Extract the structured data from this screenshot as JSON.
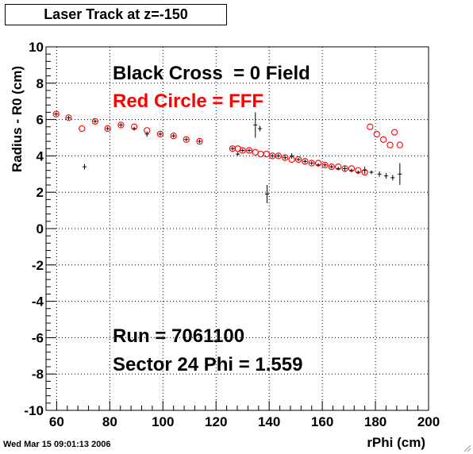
{
  "canvas": {
    "footer_timestamp": "Wed Mar 15 09:01:13 2006"
  },
  "chart_data": {
    "type": "scatter",
    "title": "Laser Track at z=-150",
    "xlabel": "rPhi (cm)",
    "ylabel": "Radius - R0 (cm)",
    "xlim": [
      56,
      200
    ],
    "ylim": [
      -10,
      10
    ],
    "x_ticks": [
      60,
      80,
      100,
      120,
      140,
      160,
      180,
      200
    ],
    "y_ticks": [
      -10,
      -8,
      -6,
      -4,
      -2,
      0,
      2,
      4,
      6,
      8,
      10
    ],
    "grid": true,
    "annotations": {
      "legend_black": "Black Cross  = 0 Field",
      "legend_red": "Red Circle = FFF",
      "run": "Run = 7061100",
      "sector": "Sector 24 Phi = 1.559"
    },
    "colors": {
      "black": "#000000",
      "red": "#ff0000"
    },
    "series": [
      {
        "marker": "cross",
        "color": "#000000",
        "points": [
          {
            "x": 59.8,
            "y": 6.3,
            "err": 0.1
          },
          {
            "x": 64.5,
            "y": 6.1,
            "err": 0.1
          },
          {
            "x": 70.5,
            "y": 3.4,
            "err": 0.15
          },
          {
            "x": 74.5,
            "y": 5.9,
            "err": 0.1
          },
          {
            "x": 79.2,
            "y": 5.5,
            "err": 0.1
          },
          {
            "x": 84.2,
            "y": 5.7,
            "err": 0.1
          },
          {
            "x": 89.2,
            "y": 5.5,
            "err": 0.1
          },
          {
            "x": 94.0,
            "y": 5.2,
            "err": 0.15
          },
          {
            "x": 99.0,
            "y": 5.2,
            "err": 0.1
          },
          {
            "x": 104.0,
            "y": 5.1,
            "err": 0.1
          },
          {
            "x": 108.8,
            "y": 4.9,
            "err": 0.1
          },
          {
            "x": 113.8,
            "y": 4.8,
            "err": 0.1
          },
          {
            "x": 126.2,
            "y": 4.4,
            "err": 0.1
          },
          {
            "x": 128.2,
            "y": 4.1,
            "err": 0.1
          },
          {
            "x": 130.0,
            "y": 4.3,
            "err": 0.1
          },
          {
            "x": 132.5,
            "y": 4.3,
            "err": 0.1
          },
          {
            "x": 134.8,
            "y": 5.7,
            "err": 0.7
          },
          {
            "x": 136.5,
            "y": 5.5,
            "err": 0.15
          },
          {
            "x": 139.2,
            "y": 1.9,
            "err": 0.5
          },
          {
            "x": 141.2,
            "y": 4.0,
            "err": 0.1
          },
          {
            "x": 143.5,
            "y": 4.0,
            "err": 0.1
          },
          {
            "x": 146.0,
            "y": 3.9,
            "err": 0.1
          },
          {
            "x": 148.5,
            "y": 4.0,
            "err": 0.15
          },
          {
            "x": 151.0,
            "y": 3.8,
            "err": 0.1
          },
          {
            "x": 153.5,
            "y": 3.7,
            "err": 0.1
          },
          {
            "x": 156.0,
            "y": 3.6,
            "err": 0.1
          },
          {
            "x": 158.5,
            "y": 3.5,
            "err": 0.1
          },
          {
            "x": 161.0,
            "y": 3.5,
            "err": 0.1
          },
          {
            "x": 163.5,
            "y": 3.4,
            "err": 0.1
          },
          {
            "x": 166.0,
            "y": 3.3,
            "err": 0.1
          },
          {
            "x": 168.5,
            "y": 3.3,
            "err": 0.15
          },
          {
            "x": 171.0,
            "y": 3.2,
            "err": 0.1
          },
          {
            "x": 173.5,
            "y": 3.1,
            "err": 0.1
          },
          {
            "x": 176.0,
            "y": 3.2,
            "err": 0.2
          },
          {
            "x": 178.5,
            "y": 3.1,
            "err": 0.1
          },
          {
            "x": 181.5,
            "y": 3.0,
            "err": 0.15
          },
          {
            "x": 184.0,
            "y": 2.9,
            "err": 0.15
          },
          {
            "x": 186.5,
            "y": 2.8,
            "err": 0.15
          },
          {
            "x": 189.2,
            "y": 3.0,
            "err": 0.6
          }
        ]
      },
      {
        "marker": "circle",
        "color": "#ff0000",
        "points": [
          {
            "x": 59.8,
            "y": 6.3
          },
          {
            "x": 64.5,
            "y": 6.1
          },
          {
            "x": 69.5,
            "y": 5.5
          },
          {
            "x": 74.5,
            "y": 5.9
          },
          {
            "x": 79.2,
            "y": 5.5
          },
          {
            "x": 84.2,
            "y": 5.7
          },
          {
            "x": 89.2,
            "y": 5.6
          },
          {
            "x": 94.0,
            "y": 5.4
          },
          {
            "x": 99.0,
            "y": 5.2
          },
          {
            "x": 104.0,
            "y": 5.1
          },
          {
            "x": 108.8,
            "y": 4.9
          },
          {
            "x": 113.8,
            "y": 4.8
          },
          {
            "x": 126.2,
            "y": 4.4
          },
          {
            "x": 128.2,
            "y": 4.4
          },
          {
            "x": 130.0,
            "y": 4.3
          },
          {
            "x": 132.5,
            "y": 4.3
          },
          {
            "x": 134.8,
            "y": 4.2
          },
          {
            "x": 136.8,
            "y": 4.1
          },
          {
            "x": 139.0,
            "y": 4.1
          },
          {
            "x": 141.2,
            "y": 4.0
          },
          {
            "x": 143.5,
            "y": 4.0
          },
          {
            "x": 146.0,
            "y": 3.9
          },
          {
            "x": 148.5,
            "y": 3.8
          },
          {
            "x": 151.0,
            "y": 3.8
          },
          {
            "x": 153.5,
            "y": 3.7
          },
          {
            "x": 156.0,
            "y": 3.6
          },
          {
            "x": 158.5,
            "y": 3.6
          },
          {
            "x": 161.0,
            "y": 3.5
          },
          {
            "x": 163.5,
            "y": 3.4
          },
          {
            "x": 166.0,
            "y": 3.4
          },
          {
            "x": 168.5,
            "y": 3.3
          },
          {
            "x": 171.0,
            "y": 3.3
          },
          {
            "x": 173.5,
            "y": 3.2
          },
          {
            "x": 176.0,
            "y": 3.1
          },
          {
            "x": 178.0,
            "y": 5.6
          },
          {
            "x": 180.5,
            "y": 5.2
          },
          {
            "x": 183.0,
            "y": 4.9
          },
          {
            "x": 185.5,
            "y": 4.6
          },
          {
            "x": 187.2,
            "y": 5.3
          },
          {
            "x": 189.2,
            "y": 4.6
          }
        ]
      }
    ]
  }
}
